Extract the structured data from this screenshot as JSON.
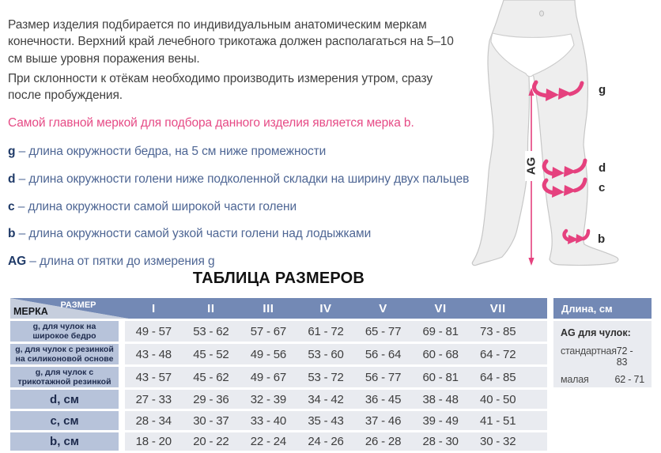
{
  "intro": {
    "p1": "Размер изделия подбирается по индивидуальным анатомическим меркам конечности. Верхний край лечебного трикотажа должен располагаться на 5–10 см выше уровня поражения вены.",
    "p2": "При склонности к отёкам необходимо производить измерения утром, сразу после пробуждения.",
    "highlight": "Самой главной меркой для подбора данного изделия является мерка b."
  },
  "measurements": [
    {
      "letter": "g",
      "dash": "–",
      "text": "длина окружности бедра, на 5 см ниже промежности"
    },
    {
      "letter": "d",
      "dash": "–",
      "text": "длина окружности голени ниже подколенной складки на ширину двух пальцев"
    },
    {
      "letter": "c",
      "dash": "–",
      "text": "длина окружности самой широкой части голени"
    },
    {
      "letter": "b",
      "dash": "–",
      "text": "длина окружности самой узкой части голени над лодыжками"
    },
    {
      "letter": "AG",
      "dash": "–",
      "text": "длина от пятки до измерения g"
    }
  ],
  "diagram": {
    "label_g": "g",
    "label_d": "d",
    "label_c": "c",
    "label_b": "b",
    "axis_label": "AG"
  },
  "size_table": {
    "title": "ТАБЛИЦА РАЗМЕРОВ",
    "corner_top": "РАЗМЕР",
    "corner_bottom": "МЕРКА",
    "columns": [
      "I",
      "II",
      "III",
      "IV",
      "V",
      "VI",
      "VII"
    ],
    "rows": [
      {
        "label": "g, для чулок на широкое бедро",
        "size": "small",
        "values": [
          "49 - 57",
          "53 - 62",
          "57 - 67",
          "61 - 72",
          "65 - 77",
          "69 - 81",
          "73 - 85"
        ]
      },
      {
        "label": "g, для чулок с резинкой на силиконовой основе",
        "size": "small",
        "values": [
          "43 - 48",
          "45 - 52",
          "49 - 56",
          "53 - 60",
          "56 - 64",
          "60 - 68",
          "64 - 72"
        ]
      },
      {
        "label": "g, для чулок с трикотажной резинкой",
        "size": "small",
        "values": [
          "43 - 57",
          "45 - 62",
          "49 - 67",
          "53 - 72",
          "56 - 77",
          "60 - 81",
          "64 - 85"
        ]
      },
      {
        "label": "d, см",
        "size": "big",
        "values": [
          "27 - 33",
          "29 - 36",
          "32 - 39",
          "34 - 42",
          "36 - 45",
          "38 - 48",
          "40 - 50"
        ]
      },
      {
        "label": "c, см",
        "size": "big",
        "values": [
          "28 - 34",
          "30 - 37",
          "33 - 40",
          "35 - 43",
          "37 - 46",
          "39 - 49",
          "41 - 51"
        ]
      },
      {
        "label": "b, см",
        "size": "big",
        "values": [
          "18 - 20",
          "20 - 22",
          "22 - 24",
          "24 - 26",
          "26 - 28",
          "28 - 30",
          "30 - 32"
        ]
      }
    ]
  },
  "length_table": {
    "header": "Длина, см",
    "subheader": "AG для чулок:",
    "rows": [
      {
        "label": "стандартная",
        "value": "72 - 83"
      },
      {
        "label": "малая",
        "value": "62 - 71"
      }
    ]
  },
  "colors": {
    "accent_pink": "#e5417e",
    "header_blue": "#7389b5",
    "label_blue": "#b7c3da",
    "cell_gray": "#e9ebf0",
    "list_blue": "#4e6694",
    "navy_text": "#1e2b4d"
  }
}
